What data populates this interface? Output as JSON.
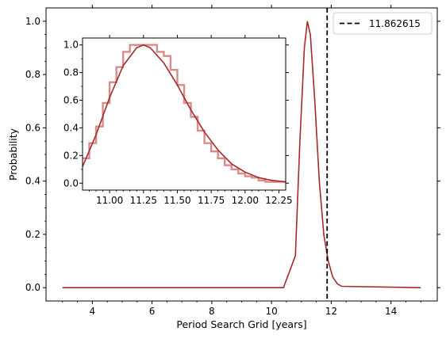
{
  "chart_data": [
    {
      "type": "line",
      "xlabel": "Period Search Grid [years]",
      "ylabel": "Probability",
      "xlim": [
        2.45,
        15.55
      ],
      "ylim": [
        -0.05,
        1.05
      ],
      "xticks": [
        4,
        6,
        8,
        10,
        12,
        14
      ],
      "xtick_labels": [
        "4",
        "6",
        "8",
        "10",
        "12",
        "14"
      ],
      "yticks": [
        0.0,
        0.2,
        0.4,
        0.6,
        0.8,
        1.0
      ],
      "ytick_labels": [
        "0.0",
        "0.2",
        "0.4",
        "0.6",
        "0.8",
        "1.0"
      ],
      "series": [
        {
          "color": "#a52a2a",
          "x": [
            3.0,
            10.4,
            10.8,
            10.95,
            11.1,
            11.2,
            11.3,
            11.45,
            11.6,
            11.75,
            11.9,
            12.05,
            12.2,
            12.35,
            15.0
          ],
          "y": [
            0.0,
            0.0,
            0.12,
            0.55,
            0.9,
            1.0,
            0.95,
            0.7,
            0.4,
            0.2,
            0.1,
            0.04,
            0.015,
            0.005,
            0.0
          ]
        }
      ],
      "vline": {
        "x": 11.862615,
        "color": "#000000",
        "style": "dashed"
      },
      "legend": {
        "placement": "top-right",
        "entries": [
          {
            "label": "11.862615",
            "style": "dashed",
            "color": "#000000"
          }
        ]
      }
    },
    {
      "type": "line",
      "placement": "inset",
      "xlim": [
        10.8,
        12.3
      ],
      "ylim": [
        -0.05,
        1.05
      ],
      "xticks": [
        11.0,
        11.25,
        11.5,
        11.75,
        12.0,
        12.25
      ],
      "xtick_labels": [
        "11.00",
        "11.25",
        "11.50",
        "11.75",
        "12.00",
        "12.25"
      ],
      "yticks": [
        0.0,
        0.2,
        0.4,
        0.6,
        0.8,
        1.0
      ],
      "ytick_labels": [
        "0.0",
        "0.2",
        "0.4",
        "0.6",
        "0.8",
        "1.0"
      ],
      "series": [
        {
          "color": "#a52a2a",
          "x": [
            10.8,
            10.9,
            11.0,
            11.1,
            11.2,
            11.25,
            11.3,
            11.4,
            11.5,
            11.6,
            11.7,
            11.8,
            11.9,
            12.0,
            12.1,
            12.2,
            12.3
          ],
          "y": [
            0.12,
            0.35,
            0.62,
            0.85,
            0.98,
            1.0,
            0.98,
            0.87,
            0.71,
            0.53,
            0.37,
            0.24,
            0.14,
            0.08,
            0.04,
            0.02,
            0.01
          ]
        },
        {
          "color": "#d98b8b",
          "step": true,
          "edges": [
            10.8,
            10.85,
            10.9,
            10.95,
            11.0,
            11.05,
            11.1,
            11.15,
            11.2,
            11.25,
            11.3,
            11.35,
            11.4,
            11.45,
            11.5,
            11.55,
            11.6,
            11.65,
            11.7,
            11.75,
            11.8,
            11.85,
            11.9,
            11.95,
            12.0,
            12.05,
            12.1,
            12.15,
            12.2,
            12.25,
            12.3
          ],
          "values": [
            0.18,
            0.29,
            0.41,
            0.58,
            0.73,
            0.84,
            0.95,
            1.0,
            1.0,
            1.0,
            1.0,
            0.95,
            0.92,
            0.82,
            0.71,
            0.58,
            0.48,
            0.38,
            0.29,
            0.23,
            0.18,
            0.13,
            0.1,
            0.07,
            0.05,
            0.04,
            0.02,
            0.01,
            0.01,
            0.01
          ]
        }
      ]
    }
  ]
}
